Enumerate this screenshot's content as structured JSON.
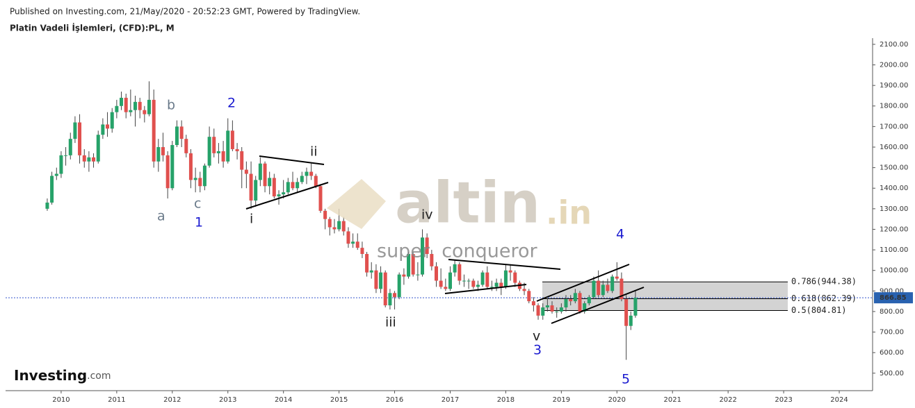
{
  "header": {
    "published": "Published on Investing.com, 21/May/2020 - 20:52:23 GMT, Powered by TradingView.",
    "symbol": "Platin Vadeli İşlemleri, (CFD):PL, M"
  },
  "logo": {
    "name": "Investing",
    "suffix": ".com"
  },
  "watermark": {
    "brand": "altin",
    "domain": ".in",
    "tagline": "super  conqueror"
  },
  "chart_data": {
    "type": "candlestick",
    "up_color": "#26a269",
    "down_color": "#e0504e",
    "wick_color": "#444",
    "x": [
      2009.75,
      2009.833,
      2009.917,
      2010,
      2010.083,
      2010.167,
      2010.25,
      2010.333,
      2010.417,
      2010.5,
      2010.583,
      2010.667,
      2010.75,
      2010.833,
      2010.917,
      2011,
      2011.083,
      2011.167,
      2011.25,
      2011.333,
      2011.417,
      2011.5,
      2011.583,
      2011.667,
      2011.75,
      2011.833,
      2011.917,
      2012,
      2012.083,
      2012.167,
      2012.25,
      2012.333,
      2012.417,
      2012.5,
      2012.583,
      2012.667,
      2012.75,
      2012.833,
      2012.917,
      2013,
      2013.083,
      2013.167,
      2013.25,
      2013.333,
      2013.417,
      2013.5,
      2013.583,
      2013.667,
      2013.75,
      2013.833,
      2013.917,
      2014,
      2014.083,
      2014.167,
      2014.25,
      2014.333,
      2014.417,
      2014.5,
      2014.583,
      2014.667,
      2014.75,
      2014.833,
      2014.917,
      2015,
      2015.083,
      2015.167,
      2015.25,
      2015.333,
      2015.417,
      2015.5,
      2015.583,
      2015.667,
      2015.75,
      2015.833,
      2015.917,
      2016,
      2016.083,
      2016.167,
      2016.25,
      2016.333,
      2016.417,
      2016.5,
      2016.583,
      2016.667,
      2016.75,
      2016.833,
      2016.917,
      2017,
      2017.083,
      2017.167,
      2017.25,
      2017.333,
      2017.417,
      2017.5,
      2017.583,
      2017.667,
      2017.75,
      2017.833,
      2017.917,
      2018,
      2018.083,
      2018.167,
      2018.25,
      2018.333,
      2018.417,
      2018.5,
      2018.583,
      2018.667,
      2018.75,
      2018.833,
      2018.917,
      2019,
      2019.083,
      2019.167,
      2019.25,
      2019.333,
      2019.417,
      2019.5,
      2019.583,
      2019.667,
      2019.75,
      2019.833,
      2019.917,
      2020,
      2020.083,
      2020.167,
      2020.25,
      2020.333
    ],
    "open": [
      1300,
      1330,
      1460,
      1470,
      1560,
      1560,
      1640,
      1720,
      1560,
      1530,
      1550,
      1530,
      1660,
      1710,
      1690,
      1770,
      1800,
      1840,
      1770,
      1780,
      1820,
      1780,
      1760,
      1830,
      1530,
      1600,
      1560,
      1400,
      1610,
      1700,
      1640,
      1570,
      1440,
      1450,
      1410,
      1510,
      1650,
      1570,
      1580,
      1530,
      1680,
      1590,
      1580,
      1490,
      1470,
      1340,
      1440,
      1520,
      1410,
      1450,
      1360,
      1370,
      1380,
      1430,
      1400,
      1430,
      1460,
      1480,
      1460,
      1410,
      1290,
      1250,
      1210,
      1200,
      1240,
      1190,
      1130,
      1140,
      1110,
      1080,
      990,
      1000,
      910,
      990,
      830,
      890,
      870,
      980,
      970,
      1080,
      980,
      980,
      1160,
      1080,
      1020,
      950,
      920,
      910,
      990,
      1030,
      950,
      950,
      950,
      920,
      930,
      990,
      920,
      920,
      940,
      920,
      1000,
      990,
      940,
      910,
      900,
      850,
      830,
      780,
      820,
      830,
      800,
      800,
      820,
      860,
      850,
      890,
      800,
      840,
      870,
      950,
      880,
      930,
      900,
      970,
      960,
      860,
      730,
      780
    ],
    "high": [
      1350,
      1480,
      1500,
      1580,
      1600,
      1670,
      1750,
      1760,
      1590,
      1580,
      1570,
      1680,
      1740,
      1770,
      1790,
      1830,
      1870,
      1860,
      1880,
      1850,
      1840,
      1800,
      1920,
      1880,
      1640,
      1670,
      1580,
      1630,
      1730,
      1730,
      1660,
      1590,
      1500,
      1480,
      1520,
      1700,
      1690,
      1620,
      1630,
      1740,
      1730,
      1620,
      1600,
      1530,
      1530,
      1460,
      1550,
      1530,
      1480,
      1470,
      1390,
      1440,
      1450,
      1480,
      1450,
      1480,
      1500,
      1520,
      1470,
      1420,
      1300,
      1260,
      1250,
      1300,
      1260,
      1210,
      1180,
      1180,
      1140,
      1090,
      1040,
      1030,
      1020,
      1000,
      910,
      900,
      990,
      1010,
      1090,
      1090,
      1040,
      1200,
      1180,
      1100,
      1040,
      1010,
      960,
      1020,
      1050,
      1040,
      980,
      960,
      960,
      950,
      1000,
      1020,
      950,
      960,
      960,
      1030,
      1030,
      1000,
      950,
      940,
      910,
      870,
      840,
      840,
      860,
      850,
      820,
      840,
      880,
      880,
      910,
      900,
      850,
      880,
      970,
      1000,
      950,
      960,
      980,
      1040,
      990,
      880,
      800,
      900
    ],
    "low": [
      1290,
      1320,
      1440,
      1450,
      1510,
      1540,
      1620,
      1520,
      1500,
      1480,
      1500,
      1520,
      1640,
      1650,
      1670,
      1740,
      1780,
      1740,
      1750,
      1700,
      1740,
      1720,
      1750,
      1500,
      1480,
      1530,
      1350,
      1390,
      1600,
      1600,
      1550,
      1400,
      1380,
      1380,
      1390,
      1500,
      1550,
      1520,
      1500,
      1520,
      1580,
      1540,
      1400,
      1400,
      1300,
      1310,
      1410,
      1380,
      1370,
      1350,
      1320,
      1350,
      1370,
      1390,
      1380,
      1420,
      1420,
      1440,
      1400,
      1280,
      1200,
      1170,
      1180,
      1190,
      1170,
      1110,
      1110,
      1100,
      1060,
      970,
      960,
      890,
      890,
      820,
      810,
      810,
      860,
      930,
      960,
      970,
      950,
      970,
      1060,
      1000,
      920,
      910,
      900,
      900,
      970,
      930,
      920,
      910,
      910,
      900,
      920,
      910,
      900,
      900,
      880,
      910,
      950,
      920,
      900,
      880,
      840,
      800,
      760,
      760,
      800,
      790,
      770,
      790,
      800,
      830,
      840,
      790,
      790,
      830,
      860,
      870,
      870,
      890,
      890,
      950,
      850,
      565,
      710,
      770
    ],
    "close": [
      1330,
      1460,
      1470,
      1560,
      1560,
      1640,
      1720,
      1560,
      1530,
      1550,
      1530,
      1660,
      1710,
      1690,
      1770,
      1800,
      1840,
      1770,
      1780,
      1820,
      1780,
      1760,
      1830,
      1530,
      1600,
      1560,
      1400,
      1610,
      1700,
      1640,
      1570,
      1440,
      1450,
      1410,
      1510,
      1650,
      1570,
      1580,
      1530,
      1680,
      1590,
      1580,
      1490,
      1470,
      1340,
      1440,
      1520,
      1410,
      1450,
      1360,
      1370,
      1380,
      1430,
      1400,
      1430,
      1460,
      1480,
      1460,
      1410,
      1290,
      1250,
      1210,
      1200,
      1240,
      1190,
      1130,
      1140,
      1110,
      1080,
      990,
      1000,
      910,
      990,
      830,
      890,
      870,
      980,
      970,
      1080,
      980,
      980,
      1160,
      1080,
      1020,
      950,
      920,
      910,
      990,
      1030,
      950,
      950,
      950,
      920,
      930,
      990,
      920,
      920,
      940,
      920,
      1000,
      990,
      940,
      910,
      900,
      850,
      830,
      780,
      820,
      830,
      800,
      800,
      820,
      860,
      850,
      890,
      800,
      840,
      870,
      950,
      880,
      930,
      900,
      970,
      960,
      860,
      730,
      780,
      866.85
    ],
    "xlim": [
      2009.0,
      2024.6
    ],
    "ylim": [
      415,
      2130
    ],
    "xticks": [
      2010,
      2011,
      2012,
      2013,
      2014,
      2015,
      2016,
      2017,
      2018,
      2019,
      2020,
      2021,
      2022,
      2023,
      2024
    ],
    "yticks": [
      {
        "value": 500,
        "label": "500.00"
      },
      {
        "value": 600,
        "label": "600.00"
      },
      {
        "value": 700,
        "label": "700.00"
      },
      {
        "value": 800,
        "label": "800.00"
      },
      {
        "value": 900,
        "label": "900.00"
      },
      {
        "value": 1000,
        "label": "1000.00"
      },
      {
        "value": 1100,
        "label": "1100.00"
      },
      {
        "value": 1200,
        "label": "1200.00"
      },
      {
        "value": 1300,
        "label": "1300.00"
      },
      {
        "value": 1400,
        "label": "1400.00"
      },
      {
        "value": 1500,
        "label": "1500.00"
      },
      {
        "value": 1600,
        "label": "1600.00"
      },
      {
        "value": 1700,
        "label": "1700.00"
      },
      {
        "value": 1800,
        "label": "1800.00"
      },
      {
        "value": 1900,
        "label": "1900.00"
      },
      {
        "value": 2000,
        "label": "2000.00"
      },
      {
        "value": 2100,
        "label": "2100.00"
      }
    ],
    "last_price": 866.85,
    "fib_levels": [
      {
        "value": 944.38,
        "label": "0.786(944.38)"
      },
      {
        "value": 862.39,
        "label": "0.618(862.39)"
      },
      {
        "value": 804.81,
        "label": "0.5(804.81)"
      }
    ],
    "annotations": [
      "a",
      "b",
      "c",
      "1",
      "2",
      "i",
      "ii",
      "iii",
      "iv",
      "v",
      "3",
      "4",
      "5"
    ]
  }
}
